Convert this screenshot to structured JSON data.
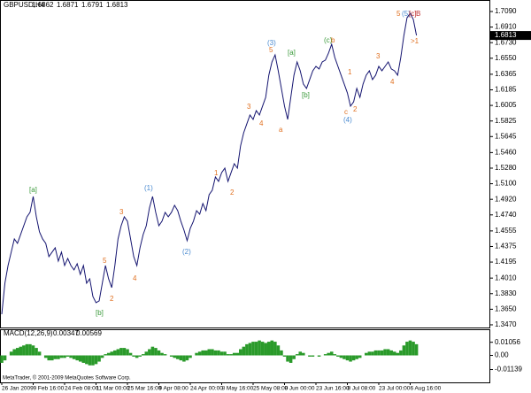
{
  "chart_data": [
    {
      "type": "line",
      "title": "GBPUSD,H4",
      "ohlc": [
        1.6862,
        1.6871,
        1.6791,
        1.6813
      ],
      "color": "#141470",
      "grid": false,
      "categories": [
        "26 Jan 2009",
        null,
        null,
        null,
        null,
        null,
        null,
        null,
        null,
        null,
        "9 Feb 16:00",
        null,
        null,
        null,
        null,
        null,
        null,
        null,
        null,
        null,
        "24 Feb 08:00",
        null,
        null,
        null,
        null,
        null,
        null,
        null,
        null,
        null,
        "11 Mar 00:00",
        null,
        null,
        null,
        null,
        null,
        null,
        null,
        null,
        null,
        "25 Mar 16:00",
        null,
        null,
        null,
        null,
        null,
        null,
        null,
        null,
        null,
        "9 Apr 08:00",
        null,
        null,
        null,
        null,
        null,
        null,
        null,
        null,
        null,
        "24 Apr 00:00",
        null,
        null,
        null,
        null,
        null,
        null,
        null,
        null,
        null,
        "8 May 16:00",
        null,
        null,
        null,
        null,
        null,
        null,
        null,
        null,
        null,
        "25 May 08:00",
        null,
        null,
        null,
        null,
        null,
        null,
        null,
        null,
        null,
        "9 Jun 00:00",
        null,
        null,
        null,
        null,
        null,
        null,
        null,
        null,
        null,
        "23 Jun 16:00",
        null,
        null,
        null,
        null,
        null,
        null,
        null,
        null,
        null,
        "8 Jul 08:00",
        null,
        null,
        null,
        null,
        null,
        null,
        null,
        null,
        null,
        "23 Jul 00:00",
        null,
        null,
        null,
        null,
        null,
        null,
        null,
        null,
        null,
        "6 Aug 16:00",
        null,
        null
      ],
      "values": [
        1.3593,
        1.3951,
        1.4155,
        1.4309,
        1.4462,
        1.4411,
        1.4513,
        1.4615,
        1.4718,
        1.4769,
        1.4953,
        1.4718,
        1.4544,
        1.4462,
        1.4411,
        1.4258,
        1.4309,
        1.436,
        1.4206,
        1.4309,
        1.4155,
        1.4237,
        1.4155,
        1.4104,
        1.4176,
        1.4053,
        1.4155,
        1.3951,
        1.4002,
        1.3797,
        1.3726,
        1.3746,
        1.3951,
        1.4155,
        1.4002,
        1.39,
        1.4155,
        1.4462,
        1.4615,
        1.4718,
        1.4667,
        1.4462,
        1.4258,
        1.4155,
        1.436,
        1.4513,
        1.4615,
        1.482,
        1.4953,
        1.4769,
        1.4615,
        1.4667,
        1.4769,
        1.4718,
        1.4769,
        1.4851,
        1.4789,
        1.4667,
        1.4564,
        1.4442,
        1.4585,
        1.4667,
        1.4789,
        1.4748,
        1.4871,
        1.4789,
        1.4973,
        1.5025,
        1.5178,
        1.5127,
        1.5229,
        1.528,
        1.5127,
        1.5229,
        1.5331,
        1.528,
        1.5536,
        1.5689,
        1.5792,
        1.5894,
        1.5843,
        1.5945,
        1.5894,
        1.5996,
        1.6098,
        1.6354,
        1.6507,
        1.6589,
        1.6405,
        1.6201,
        1.5996,
        1.5843,
        1.6098,
        1.6354,
        1.6507,
        1.6405,
        1.6252,
        1.6201,
        1.6303,
        1.6405,
        1.6456,
        1.6426,
        1.6507,
        1.6528,
        1.661,
        1.6712,
        1.6559,
        1.6456,
        1.6354,
        1.6252,
        1.615,
        1.5996,
        1.6047,
        1.6201,
        1.6098,
        1.6252,
        1.6354,
        1.6405,
        1.6303,
        1.6354,
        1.6456,
        1.6405,
        1.6456,
        1.6507,
        1.6426,
        1.6405,
        1.6354,
        1.6559,
        1.6814,
        1.7019,
        1.707,
        1.6998,
        1.6814
      ],
      "ylim": [
        1.3439,
        1.7141
      ],
      "yticks": [
        {
          "value": 1.709,
          "label": "1.7090"
        },
        {
          "value": 1.691,
          "label": "1.6910"
        },
        {
          "value": 1.673,
          "label": "1.6730"
        },
        {
          "value": 1.655,
          "label": "1.6550"
        },
        1.6365,
        1.6185,
        1.6005,
        1.5825,
        1.5645,
        {
          "value": 1.546,
          "label": "1.5460"
        },
        {
          "value": 1.528,
          "label": "1.5280"
        },
        {
          "value": 1.51,
          "label": "1.5100"
        },
        {
          "value": 1.492,
          "label": "1.4920"
        },
        {
          "value": 1.474,
          "label": "1.4740"
        },
        1.4555,
        1.4375,
        1.4195,
        {
          "value": 1.401,
          "label": "1.4010"
        },
        {
          "value": 1.383,
          "label": "1.3830"
        },
        {
          "value": 1.365,
          "label": "1.3650"
        },
        {
          "value": 1.347,
          "label": "1.3470"
        }
      ],
      "annotations": [
        {
          "text": "[a]",
          "color": "#3a9a3a"
        },
        {
          "text": "[b]",
          "color": "#3a9a3a"
        },
        {
          "text": "5",
          "color": "#e07020"
        },
        {
          "text": "2",
          "color": "#e07020"
        },
        {
          "text": "3",
          "color": "#e07020"
        },
        {
          "text": "4",
          "color": "#e07020"
        },
        {
          "text": "(1)",
          "color": "#4a8ad0"
        },
        {
          "text": "(2)",
          "color": "#4a8ad0"
        },
        {
          "text": "1",
          "color": "#e07020"
        },
        {
          "text": "2",
          "color": "#e07020"
        },
        {
          "text": "3",
          "color": "#e07020"
        },
        {
          "text": "4",
          "color": "#e07020"
        },
        {
          "text": "(3)",
          "color": "#4a8ad0"
        },
        {
          "text": "5",
          "color": "#e07020"
        },
        {
          "text": "a",
          "color": "#e07020"
        },
        {
          "text": "[a]",
          "color": "#3a9a3a"
        },
        {
          "text": "[b]",
          "color": "#3a9a3a"
        },
        {
          "text": "(c)",
          "color": "#3a9a3a"
        },
        {
          "text": "b",
          "color": "#e07020"
        },
        {
          "text": "c",
          "color": "#e07020"
        },
        {
          "text": "(4)",
          "color": "#4a8ad0"
        },
        {
          "text": "1",
          "color": "#e07020"
        },
        {
          "text": "2",
          "color": "#e07020"
        },
        {
          "text": "3",
          "color": "#e07020"
        },
        {
          "text": "4",
          "color": "#e07020"
        },
        {
          "text": "5",
          "color": "#e07020"
        },
        {
          "text": "(5)",
          "color": "#4a8ad0"
        },
        {
          "text": "[c]",
          "color": "#c03030"
        },
        {
          "text": "B",
          "color": "#c03030"
        },
        {
          "text": ">1",
          "color": "#e07020"
        }
      ]
    },
    {
      "type": "bar",
      "title": "MACD(12,26,9)",
      "readings": [
        0.00347,
        0.00569
      ],
      "color": "#2a9a2a",
      "values": [
        -0.006,
        -0.004,
        0.0,
        0.003,
        0.005,
        0.006,
        0.007,
        0.008,
        0.009,
        0.009,
        0.008,
        0.006,
        0.003,
        0.0,
        -0.002,
        -0.004,
        -0.004,
        -0.003,
        -0.003,
        -0.002,
        -0.002,
        -0.001,
        -0.002,
        -0.003,
        -0.004,
        -0.005,
        -0.006,
        -0.007,
        -0.008,
        -0.008,
        -0.007,
        -0.005,
        -0.002,
        0.001,
        0.002,
        0.003,
        0.004,
        0.005,
        0.006,
        0.006,
        0.005,
        0.002,
        -0.001,
        -0.002,
        -0.001,
        0.001,
        0.003,
        0.005,
        0.007,
        0.006,
        0.004,
        0.002,
        0.001,
        0.0,
        -0.001,
        -0.002,
        -0.003,
        -0.004,
        -0.005,
        -0.004,
        -0.002,
        0.0,
        0.002,
        0.003,
        0.004,
        0.004,
        0.005,
        0.005,
        0.004,
        0.004,
        0.003,
        0.003,
        0.001,
        0.001,
        0.002,
        0.002,
        0.005,
        0.007,
        0.009,
        0.01,
        0.011,
        0.011,
        0.012,
        0.011,
        0.01,
        0.011,
        0.012,
        0.011,
        0.008,
        0.004,
        -0.001,
        -0.005,
        -0.006,
        -0.003,
        0.001,
        0.003,
        0.002,
        0.0,
        -0.001,
        -0.001,
        0.0,
        -0.001,
        0.0,
        0.001,
        0.002,
        0.003,
        0.001,
        -0.001,
        -0.002,
        -0.003,
        -0.004,
        -0.005,
        -0.004,
        -0.003,
        -0.002,
        0.0,
        0.002,
        0.003,
        0.003,
        0.004,
        0.004,
        0.004,
        0.005,
        0.005,
        0.004,
        0.003,
        0.002,
        0.004,
        0.008,
        0.011,
        0.012,
        0.011,
        0.009
      ],
      "ylim": [
        -0.0217,
        0.0203
      ],
      "yticks": [
        0.01056,
        {
          "value": 0,
          "label": "0.00"
        },
        -0.01139
      ]
    }
  ],
  "footer": "MetaTrader, © 2001-2009 MetaQuotes Software Corp."
}
